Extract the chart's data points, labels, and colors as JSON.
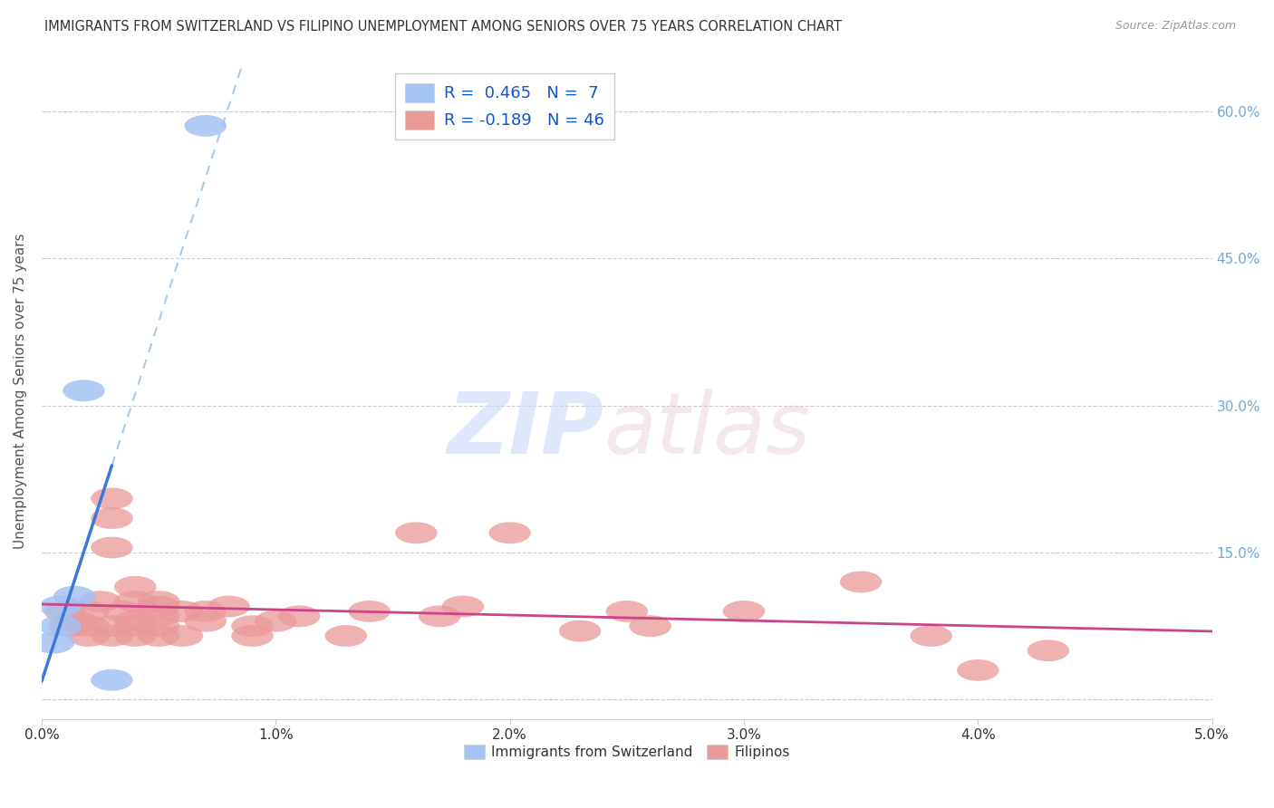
{
  "title": "IMMIGRANTS FROM SWITZERLAND VS FILIPINO UNEMPLOYMENT AMONG SENIORS OVER 75 YEARS CORRELATION CHART",
  "source": "Source: ZipAtlas.com",
  "ylabel": "Unemployment Among Seniors over 75 years",
  "legend_label1": "Immigrants from Switzerland",
  "legend_label2": "Filipinos",
  "R1": 0.465,
  "N1": 7,
  "R2": -0.189,
  "N2": 46,
  "xlim": [
    0.0,
    0.05
  ],
  "ylim": [
    -0.02,
    0.65
  ],
  "xticks": [
    0.0,
    0.01,
    0.02,
    0.03,
    0.04,
    0.05
  ],
  "yticks": [
    0.0,
    0.15,
    0.3,
    0.45,
    0.6
  ],
  "ytick_labels": [
    "",
    "15.0%",
    "30.0%",
    "45.0%",
    "60.0%"
  ],
  "xtick_labels": [
    "0.0%",
    "1.0%",
    "2.0%",
    "3.0%",
    "4.0%",
    "5.0%"
  ],
  "color_swiss": "#a4c2f4",
  "color_filipino": "#ea9999",
  "color_swiss_line": "#3c78d8",
  "color_filipino_line": "#cc4488",
  "color_dashed": "#9fc5e8",
  "swiss_points": [
    [
      0.0005,
      0.058
    ],
    [
      0.0008,
      0.095
    ],
    [
      0.0008,
      0.075
    ],
    [
      0.0014,
      0.105
    ],
    [
      0.0018,
      0.315
    ],
    [
      0.003,
      0.02
    ],
    [
      0.007,
      0.585
    ]
  ],
  "filipino_points": [
    [
      0.001,
      0.09
    ],
    [
      0.0012,
      0.075
    ],
    [
      0.0015,
      0.08
    ],
    [
      0.002,
      0.09
    ],
    [
      0.002,
      0.075
    ],
    [
      0.002,
      0.065
    ],
    [
      0.0025,
      0.1
    ],
    [
      0.003,
      0.075
    ],
    [
      0.003,
      0.065
    ],
    [
      0.003,
      0.185
    ],
    [
      0.003,
      0.205
    ],
    [
      0.003,
      0.155
    ],
    [
      0.0035,
      0.09
    ],
    [
      0.004,
      0.08
    ],
    [
      0.004,
      0.065
    ],
    [
      0.004,
      0.075
    ],
    [
      0.004,
      0.1
    ],
    [
      0.004,
      0.115
    ],
    [
      0.005,
      0.065
    ],
    [
      0.005,
      0.075
    ],
    [
      0.005,
      0.085
    ],
    [
      0.005,
      0.1
    ],
    [
      0.005,
      0.095
    ],
    [
      0.006,
      0.09
    ],
    [
      0.006,
      0.065
    ],
    [
      0.007,
      0.08
    ],
    [
      0.007,
      0.09
    ],
    [
      0.008,
      0.095
    ],
    [
      0.009,
      0.065
    ],
    [
      0.009,
      0.075
    ],
    [
      0.01,
      0.08
    ],
    [
      0.011,
      0.085
    ],
    [
      0.013,
      0.065
    ],
    [
      0.014,
      0.09
    ],
    [
      0.016,
      0.17
    ],
    [
      0.017,
      0.085
    ],
    [
      0.018,
      0.095
    ],
    [
      0.02,
      0.17
    ],
    [
      0.023,
      0.07
    ],
    [
      0.025,
      0.09
    ],
    [
      0.026,
      0.075
    ],
    [
      0.03,
      0.09
    ],
    [
      0.035,
      0.12
    ],
    [
      0.038,
      0.065
    ],
    [
      0.04,
      0.03
    ],
    [
      0.043,
      0.05
    ]
  ]
}
